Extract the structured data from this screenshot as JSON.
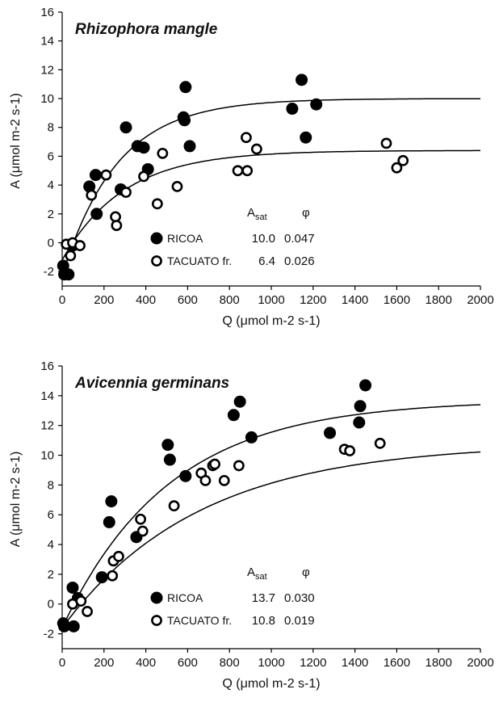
{
  "chart_data": [
    {
      "type": "scatter",
      "title": "Rhizophora mangle",
      "xlabel": "Q (μmol m-2 s-1)",
      "ylabel": "A (μmol m-2 s-1)",
      "xlim": [
        0,
        2000
      ],
      "ylim": [
        -3,
        16
      ],
      "x_ticks": [
        0,
        200,
        400,
        600,
        800,
        1000,
        1200,
        1400,
        1600,
        1800,
        2000
      ],
      "y_ticks": [
        -2,
        0,
        2,
        4,
        6,
        8,
        10,
        12,
        14,
        16
      ],
      "grid": false,
      "legend_position": "lower-center",
      "param_headers": {
        "asat": "A",
        "asat_sub": "sat",
        "phi": "φ"
      },
      "series": [
        {
          "name": "RICOA",
          "marker": "filled-circle",
          "asat": "10.0",
          "phi": "0.047",
          "curve": {
            "asat": 10.0,
            "phi": 0.047,
            "rd": -2.3
          },
          "points": [
            {
              "x": 5,
              "y": -1.6
            },
            {
              "x": 10,
              "y": -2.2
            },
            {
              "x": 30,
              "y": -2.2
            },
            {
              "x": 50,
              "y": -0.2
            },
            {
              "x": 130,
              "y": 3.9
            },
            {
              "x": 160,
              "y": 4.7
            },
            {
              "x": 165,
              "y": 2.0
            },
            {
              "x": 280,
              "y": 3.7
            },
            {
              "x": 305,
              "y": 8.0
            },
            {
              "x": 360,
              "y": 6.7
            },
            {
              "x": 390,
              "y": 6.6
            },
            {
              "x": 410,
              "y": 5.1
            },
            {
              "x": 580,
              "y": 8.7
            },
            {
              "x": 585,
              "y": 8.5
            },
            {
              "x": 590,
              "y": 10.8
            },
            {
              "x": 610,
              "y": 6.7
            },
            {
              "x": 1100,
              "y": 9.3
            },
            {
              "x": 1145,
              "y": 11.3
            },
            {
              "x": 1165,
              "y": 7.3
            },
            {
              "x": 1215,
              "y": 9.6
            }
          ]
        },
        {
          "name": "TACUATO fr.",
          "marker": "open-circle",
          "asat": "6.4",
          "phi": "0.026",
          "curve": {
            "asat": 6.4,
            "phi": 0.026,
            "rd": -1.2
          },
          "points": [
            {
              "x": 20,
              "y": -0.1
            },
            {
              "x": 40,
              "y": -0.9
            },
            {
              "x": 50,
              "y": 0.0
            },
            {
              "x": 85,
              "y": -0.2
            },
            {
              "x": 140,
              "y": 3.3
            },
            {
              "x": 210,
              "y": 4.7
            },
            {
              "x": 255,
              "y": 1.8
            },
            {
              "x": 260,
              "y": 1.2
            },
            {
              "x": 305,
              "y": 3.5
            },
            {
              "x": 390,
              "y": 4.6
            },
            {
              "x": 455,
              "y": 2.7
            },
            {
              "x": 480,
              "y": 6.2
            },
            {
              "x": 550,
              "y": 3.9
            },
            {
              "x": 840,
              "y": 5.0
            },
            {
              "x": 880,
              "y": 7.3
            },
            {
              "x": 885,
              "y": 5.0
            },
            {
              "x": 930,
              "y": 6.5
            },
            {
              "x": 1550,
              "y": 6.9
            },
            {
              "x": 1600,
              "y": 5.2
            },
            {
              "x": 1630,
              "y": 5.7
            }
          ]
        }
      ]
    },
    {
      "type": "scatter",
      "title": "Avicennia germinans",
      "xlabel": "Q (μmol m-2 s-1)",
      "ylabel": "A (μmol m-2 s-1)",
      "xlim": [
        0,
        2000
      ],
      "ylim": [
        -3,
        16
      ],
      "x_ticks": [
        0,
        200,
        400,
        600,
        800,
        1000,
        1200,
        1400,
        1600,
        1800,
        2000
      ],
      "y_ticks": [
        -2,
        0,
        2,
        4,
        6,
        8,
        10,
        12,
        14,
        16
      ],
      "grid": false,
      "legend_position": "lower-center",
      "param_headers": {
        "asat": "A",
        "asat_sub": "sat",
        "phi": "φ"
      },
      "series": [
        {
          "name": "RICOA",
          "marker": "filled-circle",
          "asat": "13.7",
          "phi": "0.030",
          "curve": {
            "asat": 13.7,
            "phi": 0.03,
            "rd": -1.6
          },
          "points": [
            {
              "x": 5,
              "y": -1.3
            },
            {
              "x": 10,
              "y": -1.5
            },
            {
              "x": 50,
              "y": 1.1
            },
            {
              "x": 55,
              "y": -1.5
            },
            {
              "x": 75,
              "y": 0.4
            },
            {
              "x": 190,
              "y": 1.8
            },
            {
              "x": 225,
              "y": 5.5
            },
            {
              "x": 235,
              "y": 6.9
            },
            {
              "x": 355,
              "y": 4.5
            },
            {
              "x": 505,
              "y": 10.7
            },
            {
              "x": 515,
              "y": 9.7
            },
            {
              "x": 590,
              "y": 8.6
            },
            {
              "x": 820,
              "y": 12.7
            },
            {
              "x": 850,
              "y": 13.6
            },
            {
              "x": 905,
              "y": 11.2
            },
            {
              "x": 1280,
              "y": 11.5
            },
            {
              "x": 1420,
              "y": 12.2
            },
            {
              "x": 1425,
              "y": 13.3
            },
            {
              "x": 1450,
              "y": 14.7
            }
          ]
        },
        {
          "name": "TACUATO fr.",
          "marker": "open-circle",
          "asat": "10.8",
          "phi": "0.019",
          "curve": {
            "asat": 10.8,
            "phi": 0.019,
            "rd": -1.6
          },
          "points": [
            {
              "x": 50,
              "y": 0.0
            },
            {
              "x": 90,
              "y": 0.2
            },
            {
              "x": 120,
              "y": -0.5
            },
            {
              "x": 240,
              "y": 1.9
            },
            {
              "x": 245,
              "y": 2.9
            },
            {
              "x": 270,
              "y": 3.2
            },
            {
              "x": 375,
              "y": 5.7
            },
            {
              "x": 385,
              "y": 4.9
            },
            {
              "x": 535,
              "y": 6.6
            },
            {
              "x": 665,
              "y": 8.8
            },
            {
              "x": 685,
              "y": 8.3
            },
            {
              "x": 720,
              "y": 9.3
            },
            {
              "x": 730,
              "y": 9.4
            },
            {
              "x": 775,
              "y": 8.3
            },
            {
              "x": 845,
              "y": 9.3
            },
            {
              "x": 1350,
              "y": 10.4
            },
            {
              "x": 1375,
              "y": 10.3
            },
            {
              "x": 1520,
              "y": 10.8
            }
          ]
        }
      ]
    }
  ]
}
